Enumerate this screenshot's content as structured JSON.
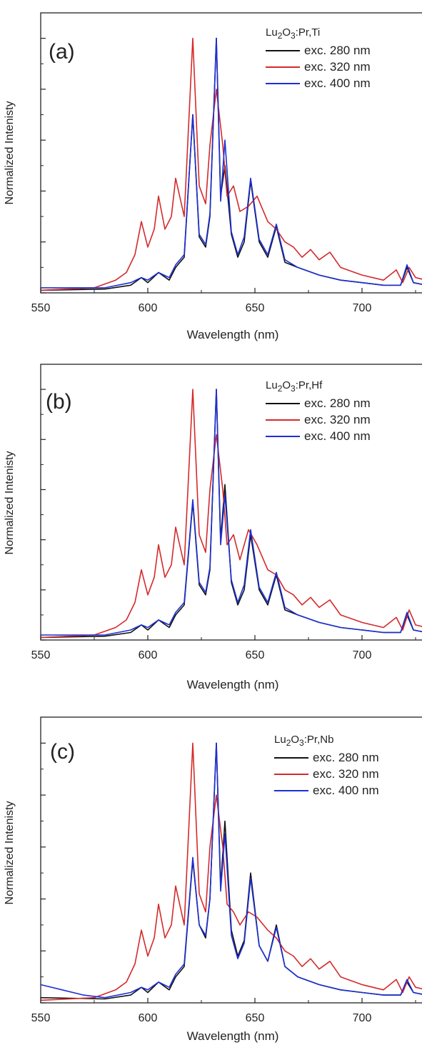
{
  "chart_data": [
    {
      "type": "line",
      "panel_label": "(a)",
      "legend_title": {
        "main": "Lu",
        "sub1": "2",
        "mid": "O",
        "sub2": "3",
        "tail": ":Pr,Ti"
      },
      "xlabel": "Wavelength (nm)",
      "ylabel": "Normalized Intenisty",
      "xlim": [
        550,
        730
      ],
      "ylim": [
        0,
        1.1
      ],
      "xticks": [
        550,
        600,
        650,
        700
      ],
      "legend_position": "top-right",
      "grid": false,
      "series": [
        {
          "name": "exc. 280 nm",
          "color": "#111111",
          "x": [
            550,
            580,
            592,
            597,
            600,
            605,
            610,
            613,
            617,
            621,
            624,
            627,
            629,
            632,
            634,
            636,
            639,
            642,
            645,
            648,
            652,
            656,
            660,
            664,
            670,
            680,
            690,
            700,
            710,
            718,
            721,
            724,
            730
          ],
          "y": [
            0.01,
            0.015,
            0.03,
            0.06,
            0.04,
            0.08,
            0.05,
            0.1,
            0.14,
            0.7,
            0.22,
            0.18,
            0.3,
            1.0,
            0.38,
            0.5,
            0.23,
            0.14,
            0.2,
            0.44,
            0.2,
            0.14,
            0.26,
            0.12,
            0.1,
            0.07,
            0.05,
            0.04,
            0.03,
            0.03,
            0.1,
            0.04,
            0.03
          ]
        },
        {
          "name": "exc. 320 nm",
          "color": "#d42a2a",
          "x": [
            550,
            575,
            585,
            590,
            594,
            597,
            600,
            603,
            605,
            608,
            611,
            613,
            617,
            621,
            624,
            627,
            629,
            632,
            635,
            637,
            640,
            643,
            647,
            651,
            656,
            660,
            664,
            668,
            672,
            676,
            680,
            685,
            690,
            700,
            710,
            716,
            719,
            722,
            725,
            730
          ],
          "y": [
            0.01,
            0.02,
            0.05,
            0.08,
            0.15,
            0.28,
            0.18,
            0.25,
            0.38,
            0.25,
            0.3,
            0.45,
            0.3,
            1.0,
            0.42,
            0.35,
            0.58,
            0.8,
            0.58,
            0.38,
            0.42,
            0.32,
            0.34,
            0.38,
            0.28,
            0.25,
            0.2,
            0.18,
            0.14,
            0.17,
            0.13,
            0.16,
            0.1,
            0.07,
            0.05,
            0.09,
            0.04,
            0.1,
            0.06,
            0.05
          ]
        },
        {
          "name": "exc. 400 nm",
          "color": "#1c2fd4",
          "x": [
            550,
            580,
            592,
            597,
            600,
            605,
            610,
            613,
            617,
            621,
            624,
            627,
            629,
            632,
            634,
            636,
            639,
            642,
            645,
            648,
            652,
            656,
            660,
            664,
            670,
            680,
            690,
            700,
            710,
            718,
            721,
            724,
            730
          ],
          "y": [
            0.02,
            0.02,
            0.04,
            0.06,
            0.05,
            0.08,
            0.06,
            0.11,
            0.15,
            0.7,
            0.23,
            0.19,
            0.31,
            1.0,
            0.36,
            0.6,
            0.24,
            0.15,
            0.22,
            0.45,
            0.21,
            0.15,
            0.27,
            0.13,
            0.1,
            0.07,
            0.05,
            0.04,
            0.03,
            0.03,
            0.11,
            0.04,
            0.03
          ]
        }
      ]
    },
    {
      "type": "line",
      "panel_label": "(b)",
      "legend_title": {
        "main": "Lu",
        "sub1": "2",
        "mid": "O",
        "sub2": "3",
        "tail": ":Pr,Hf"
      },
      "xlabel": "Wavelength (nm)",
      "ylabel": "Normalized Intenisty",
      "xlim": [
        550,
        730
      ],
      "ylim": [
        0,
        1.1
      ],
      "xticks": [
        550,
        600,
        650,
        700
      ],
      "legend_position": "top-right",
      "grid": false,
      "series": [
        {
          "name": "exc. 280 nm",
          "color": "#111111",
          "x": [
            550,
            580,
            592,
            597,
            600,
            605,
            610,
            613,
            617,
            621,
            624,
            627,
            629,
            632,
            634,
            636,
            639,
            642,
            645,
            648,
            652,
            656,
            660,
            664,
            670,
            680,
            690,
            700,
            710,
            718,
            721,
            724,
            730
          ],
          "y": [
            0.01,
            0.015,
            0.03,
            0.06,
            0.04,
            0.08,
            0.05,
            0.1,
            0.14,
            0.55,
            0.22,
            0.18,
            0.28,
            1.0,
            0.4,
            0.62,
            0.23,
            0.14,
            0.2,
            0.42,
            0.2,
            0.14,
            0.26,
            0.12,
            0.1,
            0.07,
            0.05,
            0.04,
            0.03,
            0.03,
            0.1,
            0.04,
            0.03
          ]
        },
        {
          "name": "exc. 320 nm",
          "color": "#d42a2a",
          "x": [
            550,
            575,
            585,
            590,
            594,
            597,
            600,
            603,
            605,
            608,
            611,
            613,
            617,
            621,
            624,
            627,
            629,
            632,
            635,
            637,
            640,
            643,
            647,
            651,
            656,
            660,
            664,
            668,
            672,
            676,
            680,
            685,
            690,
            700,
            710,
            716,
            719,
            722,
            725,
            730
          ],
          "y": [
            0.01,
            0.02,
            0.05,
            0.08,
            0.15,
            0.28,
            0.18,
            0.25,
            0.38,
            0.25,
            0.3,
            0.45,
            0.3,
            1.0,
            0.42,
            0.35,
            0.6,
            0.82,
            0.6,
            0.38,
            0.42,
            0.32,
            0.44,
            0.38,
            0.28,
            0.26,
            0.2,
            0.18,
            0.14,
            0.17,
            0.13,
            0.16,
            0.1,
            0.07,
            0.05,
            0.09,
            0.04,
            0.12,
            0.06,
            0.05
          ]
        },
        {
          "name": "exc. 400 nm",
          "color": "#1c2fd4",
          "x": [
            550,
            580,
            592,
            597,
            600,
            605,
            610,
            613,
            617,
            621,
            624,
            627,
            629,
            632,
            634,
            636,
            639,
            642,
            645,
            648,
            652,
            656,
            660,
            664,
            670,
            680,
            690,
            700,
            710,
            718,
            721,
            724,
            730
          ],
          "y": [
            0.02,
            0.02,
            0.04,
            0.06,
            0.05,
            0.08,
            0.06,
            0.11,
            0.15,
            0.56,
            0.23,
            0.19,
            0.29,
            1.0,
            0.38,
            0.58,
            0.24,
            0.15,
            0.22,
            0.44,
            0.21,
            0.15,
            0.27,
            0.13,
            0.1,
            0.07,
            0.05,
            0.04,
            0.03,
            0.03,
            0.11,
            0.04,
            0.03
          ]
        }
      ]
    },
    {
      "type": "line",
      "panel_label": "(c)",
      "legend_title": {
        "main": "Lu",
        "sub1": "2",
        "mid": "O",
        "sub2": "3",
        "tail": ":Pr,Nb"
      },
      "xlabel": "Wavelength (nm)",
      "ylabel": "Normalized Intenisty",
      "xlim": [
        550,
        730
      ],
      "ylim": [
        0,
        1.1
      ],
      "xticks": [
        550,
        600,
        650,
        700
      ],
      "legend_position": "top-right",
      "grid": false,
      "series": [
        {
          "name": "exc. 280 nm",
          "color": "#111111",
          "x": [
            550,
            580,
            592,
            597,
            600,
            605,
            610,
            613,
            617,
            621,
            624,
            627,
            629,
            632,
            634,
            636,
            639,
            642,
            645,
            648,
            652,
            656,
            660,
            664,
            670,
            680,
            690,
            700,
            710,
            718,
            721,
            724,
            730
          ],
          "y": [
            0.02,
            0.015,
            0.03,
            0.06,
            0.04,
            0.08,
            0.05,
            0.1,
            0.14,
            0.55,
            0.3,
            0.25,
            0.4,
            1.0,
            0.45,
            0.7,
            0.28,
            0.18,
            0.24,
            0.5,
            0.22,
            0.16,
            0.3,
            0.14,
            0.1,
            0.07,
            0.05,
            0.04,
            0.03,
            0.03,
            0.08,
            0.04,
            0.03
          ]
        },
        {
          "name": "exc. 320 nm",
          "color": "#d42a2a",
          "x": [
            550,
            575,
            585,
            590,
            594,
            597,
            600,
            603,
            605,
            608,
            611,
            613,
            617,
            621,
            624,
            627,
            629,
            632,
            635,
            637,
            640,
            643,
            647,
            651,
            656,
            660,
            664,
            668,
            672,
            676,
            680,
            685,
            690,
            700,
            710,
            716,
            719,
            722,
            725,
            730
          ],
          "y": [
            0.01,
            0.02,
            0.05,
            0.08,
            0.15,
            0.28,
            0.18,
            0.25,
            0.38,
            0.25,
            0.3,
            0.45,
            0.3,
            1.0,
            0.42,
            0.35,
            0.6,
            0.8,
            0.6,
            0.38,
            0.35,
            0.3,
            0.35,
            0.33,
            0.28,
            0.25,
            0.2,
            0.18,
            0.14,
            0.17,
            0.13,
            0.16,
            0.1,
            0.07,
            0.05,
            0.09,
            0.04,
            0.1,
            0.06,
            0.05
          ]
        },
        {
          "name": "exc. 400 nm",
          "color": "#1c2fd4",
          "x": [
            550,
            560,
            570,
            580,
            592,
            597,
            600,
            605,
            610,
            613,
            617,
            621,
            624,
            627,
            629,
            632,
            634,
            636,
            639,
            642,
            645,
            648,
            652,
            656,
            660,
            664,
            670,
            680,
            690,
            700,
            710,
            718,
            721,
            724,
            730
          ],
          "y": [
            0.07,
            0.05,
            0.03,
            0.02,
            0.04,
            0.06,
            0.05,
            0.08,
            0.06,
            0.11,
            0.15,
            0.56,
            0.3,
            0.26,
            0.4,
            1.0,
            0.43,
            0.65,
            0.26,
            0.17,
            0.23,
            0.48,
            0.22,
            0.16,
            0.29,
            0.14,
            0.1,
            0.07,
            0.05,
            0.04,
            0.03,
            0.03,
            0.09,
            0.04,
            0.03
          ]
        }
      ]
    }
  ]
}
